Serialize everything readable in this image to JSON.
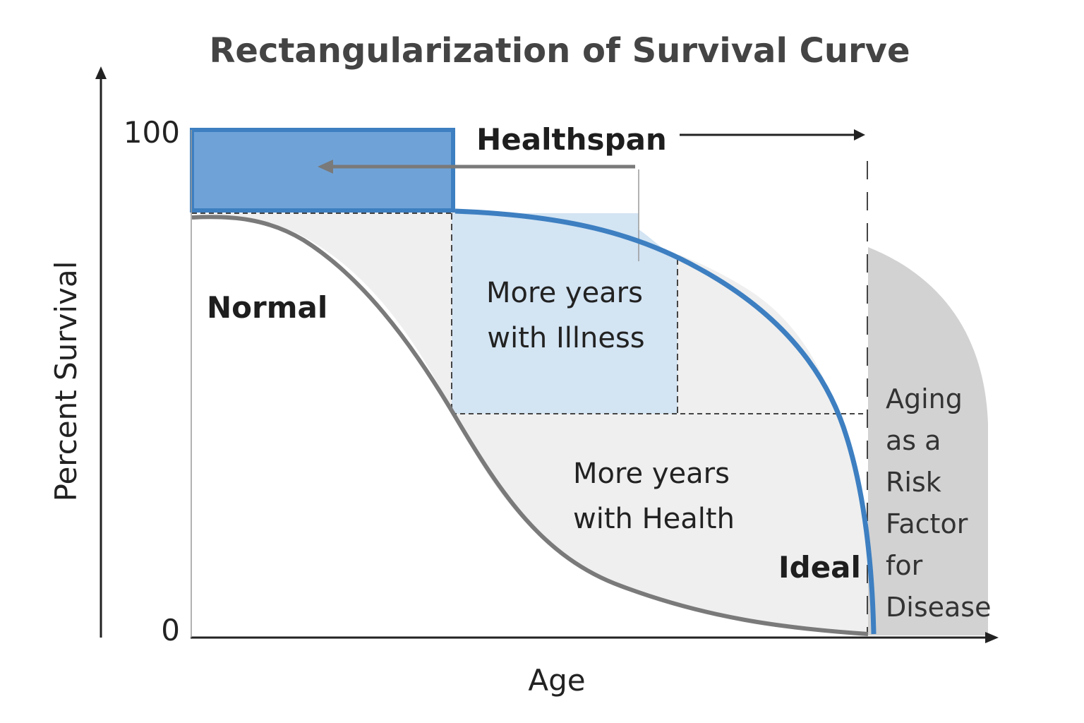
{
  "title": "Rectangularization of Survival Curve",
  "axes": {
    "y_label": "Percent Survival",
    "x_label": "Age",
    "y_ticks": [
      "100",
      "0"
    ]
  },
  "labels": {
    "healthspan": "Healthspan",
    "normal": "Normal",
    "ideal": "Ideal",
    "illness": [
      "More years",
      "with Illness"
    ],
    "health": [
      "More years",
      "with Health"
    ],
    "aging": [
      "Aging",
      "as a",
      "Risk",
      "Factor",
      "for",
      "Disease"
    ]
  },
  "colors": {
    "ideal_curve": "#3d7fc1",
    "normal_curve": "#7a7a7a",
    "healthspan_box": "#6fa3d8",
    "illness_region": "#d3e4f3",
    "health_region": "#efefef",
    "aging_region": "#d2d2d2"
  }
}
